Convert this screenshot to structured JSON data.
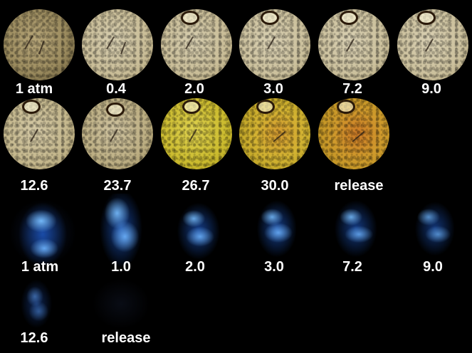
{
  "optical_row1_labels": [
    "1 atm",
    "0.4",
    "2.0",
    "3.0",
    "7.2",
    "9.0"
  ],
  "optical_row2_labels": [
    "12.6",
    "23.7",
    "26.7",
    "30.0",
    "release"
  ],
  "fluor_row1_labels": [
    "1 atm",
    "1.0",
    "2.0",
    "3.0",
    "7.2",
    "9.0"
  ],
  "fluor_row2_labels": [
    "12.6",
    "release"
  ],
  "colors": {
    "background": "#000000",
    "optical_beige": "#cfc4a2",
    "optical_yellow": "#d6c332",
    "optical_orange": "#d49b2c",
    "fluorescence_blue": "#2f7be8",
    "label": "#ffffff"
  }
}
